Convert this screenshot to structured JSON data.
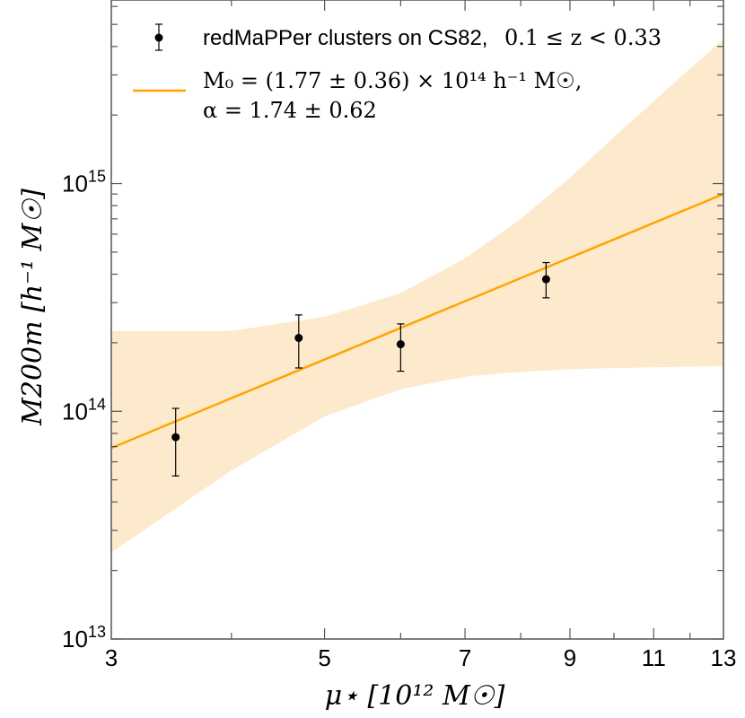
{
  "chart_data": {
    "type": "scatter",
    "x_scale": "log",
    "y_scale": "log",
    "xlim": [
      3,
      13
    ],
    "ylim": [
      10000000000000.0,
      6400000000000000.0
    ],
    "x_ticks": [
      3,
      5,
      7,
      9,
      11,
      13
    ],
    "x_tick_labels": [
      "3",
      "5",
      "7",
      "9",
      "11",
      "13"
    ],
    "y_ticks": [
      10000000000000.0,
      100000000000000.0,
      1000000000000000.0
    ],
    "y_tick_label_bases": [
      "10",
      "10",
      "10"
    ],
    "y_tick_label_exps": [
      "13",
      "14",
      "15"
    ],
    "xlabel": "μ⋆ [10¹² M☉]",
    "ylabel": "M200m [h⁻¹ M☉]",
    "series": [
      {
        "name": "redMaPPer clusters on CS82, 0.1 ≤ z < 0.33",
        "kind": "points_with_errorbars",
        "color": "#000000",
        "points": [
          {
            "x": 3.5,
            "y": 77000000000000.0,
            "y_lo": 52000000000000.0,
            "y_hi": 103000000000000.0
          },
          {
            "x": 4.7,
            "y": 210000000000000.0,
            "y_lo": 155000000000000.0,
            "y_hi": 265000000000000.0
          },
          {
            "x": 6.0,
            "y": 197000000000000.0,
            "y_lo": 150000000000000.0,
            "y_hi": 242000000000000.0
          },
          {
            "x": 8.5,
            "y": 380000000000000.0,
            "y_lo": 315000000000000.0,
            "y_hi": 450000000000000.0
          }
        ]
      },
      {
        "name": "M0 = (1.77 ± 0.36) × 10^14 h^-1 M☉, α = 1.74 ± 0.62",
        "kind": "fit_line",
        "color": "#ffa500",
        "x": [
          3,
          13
        ],
        "y": [
          69000000000000.0,
          900000000000000.0
        ]
      },
      {
        "name": "confidence band",
        "kind": "band",
        "color": "#fde9cc",
        "x": [
          3,
          4,
          5,
          6,
          7,
          8,
          9,
          10,
          11,
          12,
          13
        ],
        "upper": [
          225000000000000.0,
          225000000000000.0,
          260000000000000.0,
          330000000000000.0,
          470000000000000.0,
          700000000000000.0,
          1060000000000000.0,
          1600000000000000.0,
          2300000000000000.0,
          3200000000000000.0,
          4300000000000000.0
        ],
        "lower": [
          24000000000000.0,
          55000000000000.0,
          95000000000000.0,
          125000000000000.0,
          142000000000000.0,
          149000000000000.0,
          153000000000000.0,
          155000000000000.0,
          156000000000000.0,
          157000000000000.0,
          158000000000000.0
        ]
      }
    ],
    "legend": {
      "placement": "top-left",
      "entry1_text": "redMaPPer clusters on CS82,",
      "entry1_math": "0.1 ≤ z < 0.33",
      "entry2_line1": "M₀ = (1.77 ± 0.36) × 10¹⁴ h⁻¹ M☉,",
      "entry2_line2": "α = 1.74 ± 0.62"
    }
  },
  "colors": {
    "band": "#fde9cc",
    "fit": "#ffa500",
    "points": "#000000",
    "axes": "#555555"
  }
}
